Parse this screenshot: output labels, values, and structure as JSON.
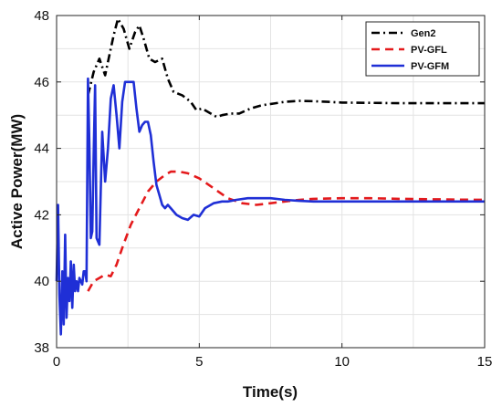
{
  "chart_data": {
    "type": "line",
    "title": "",
    "xlabel": "Time(s)",
    "ylabel": "Active Power(MW)",
    "xlim": [
      0,
      15
    ],
    "ylim": [
      38,
      48
    ],
    "xticks": [
      0,
      5,
      10,
      15
    ],
    "yticks": [
      38,
      40,
      42,
      44,
      46,
      48
    ],
    "grid": true,
    "legend_position": "top-right",
    "series": [
      {
        "name": "Gen2",
        "color": "#000000",
        "style": "dashdot",
        "x": [
          1.1,
          1.3,
          1.5,
          1.7,
          1.85,
          2.0,
          2.15,
          2.35,
          2.55,
          2.75,
          2.9,
          3.05,
          3.25,
          3.45,
          3.7,
          3.9,
          4.1,
          4.4,
          4.7,
          4.9,
          5.1,
          5.4,
          5.6,
          5.8,
          6.1,
          6.4,
          6.8,
          7.2,
          7.6,
          8.0,
          8.5,
          9.0,
          9.5,
          10.0,
          11.0,
          12.0,
          13.0,
          14.0,
          15.0
        ],
        "y": [
          45.6,
          46.3,
          46.7,
          46.2,
          46.8,
          47.4,
          47.9,
          47.6,
          47.0,
          47.5,
          47.7,
          47.3,
          46.7,
          46.6,
          46.7,
          46.1,
          45.7,
          45.6,
          45.4,
          45.15,
          45.2,
          45.05,
          44.95,
          45.0,
          45.05,
          45.05,
          45.2,
          45.3,
          45.35,
          45.4,
          45.43,
          45.42,
          45.4,
          45.38,
          45.37,
          45.36,
          45.36,
          45.36,
          45.36
        ]
      },
      {
        "name": "PV-GFL",
        "color": "#e41a1c",
        "style": "dashed",
        "x": [
          1.1,
          1.3,
          1.5,
          1.7,
          1.9,
          2.1,
          2.3,
          2.6,
          2.9,
          3.2,
          3.5,
          3.8,
          4.0,
          4.3,
          4.6,
          5.0,
          5.5,
          6.0,
          6.5,
          7.0,
          7.5,
          8.0,
          8.5,
          9.0,
          10.0,
          11.0,
          12.0,
          13.0,
          14.0,
          15.0
        ],
        "y": [
          39.7,
          40.0,
          40.1,
          40.2,
          40.15,
          40.5,
          41.0,
          41.7,
          42.2,
          42.7,
          43.0,
          43.2,
          43.3,
          43.3,
          43.25,
          43.1,
          42.8,
          42.5,
          42.35,
          42.3,
          42.35,
          42.4,
          42.45,
          42.48,
          42.5,
          42.5,
          42.48,
          42.47,
          42.46,
          42.45
        ]
      },
      {
        "name": "PV-GFM",
        "color": "#1f2fd6",
        "style": "solid",
        "x": [
          0.0,
          0.05,
          0.1,
          0.15,
          0.2,
          0.25,
          0.3,
          0.35,
          0.4,
          0.45,
          0.5,
          0.55,
          0.6,
          0.65,
          0.7,
          0.75,
          0.8,
          0.85,
          0.9,
          0.95,
          1.0,
          1.05,
          1.1,
          1.15,
          1.2,
          1.25,
          1.3,
          1.35,
          1.4,
          1.5,
          1.6,
          1.7,
          1.8,
          1.9,
          2.0,
          2.1,
          2.2,
          2.3,
          2.4,
          2.5,
          2.6,
          2.7,
          2.8,
          2.9,
          3.0,
          3.1,
          3.2,
          3.3,
          3.4,
          3.5,
          3.6,
          3.7,
          3.8,
          3.9,
          4.0,
          4.2,
          4.4,
          4.6,
          4.8,
          5.0,
          5.2,
          5.5,
          5.8,
          6.0,
          6.3,
          6.7,
          7.0,
          7.5,
          8.0,
          8.5,
          9.0,
          10.0,
          11.0,
          12.0,
          13.0,
          14.0,
          15.0
        ],
        "y": [
          40.0,
          42.3,
          39.6,
          38.4,
          40.3,
          38.7,
          41.4,
          38.9,
          40.1,
          39.4,
          40.6,
          39.2,
          40.5,
          39.7,
          40.0,
          39.7,
          40.1,
          40.0,
          39.9,
          40.3,
          40.3,
          40.0,
          46.1,
          44.0,
          41.3,
          41.5,
          43.8,
          45.9,
          41.3,
          41.1,
          44.5,
          43.0,
          44.0,
          45.5,
          45.9,
          45.0,
          44.0,
          45.4,
          46.0,
          46.0,
          46.0,
          46.0,
          45.2,
          44.5,
          44.7,
          44.8,
          44.8,
          44.4,
          43.6,
          42.9,
          42.6,
          42.3,
          42.2,
          42.3,
          42.2,
          42.0,
          41.9,
          41.85,
          42.0,
          41.95,
          42.2,
          42.35,
          42.4,
          42.4,
          42.45,
          42.5,
          42.5,
          42.5,
          42.45,
          42.42,
          42.4,
          42.4,
          42.4,
          42.4,
          42.4,
          42.4,
          42.4
        ]
      }
    ]
  }
}
